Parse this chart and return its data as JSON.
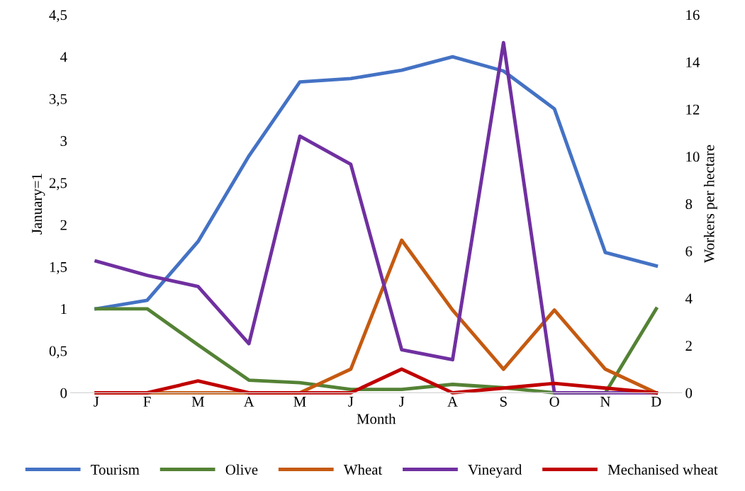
{
  "chart_data": {
    "type": "line",
    "xlabel": "Month",
    "ylabel": "January=1",
    "y2label": "Workers per hectare",
    "categories": [
      "J",
      "F",
      "M",
      "A",
      "M",
      "J",
      "J",
      "A",
      "S",
      "O",
      "N",
      "D"
    ],
    "series": [
      {
        "name": "Tourism",
        "color": "#4472c4",
        "values": [
          1.0,
          1.1,
          1.8,
          2.82,
          3.7,
          3.74,
          3.84,
          4.0,
          3.83,
          3.38,
          1.67,
          1.51
        ]
      },
      {
        "name": "Olive",
        "color": "#548235",
        "values": [
          1.0,
          1.0,
          0.57,
          0.15,
          0.12,
          0.04,
          0.04,
          0.1,
          0.06,
          0,
          0,
          1.0
        ]
      },
      {
        "name": "Wheat",
        "color": "#c55a11",
        "axis": "y2",
        "values": [
          0,
          0,
          0,
          0,
          0,
          1.0,
          6.46,
          3.5,
          1.0,
          3.5,
          1.0,
          0
        ]
      },
      {
        "name": "Vineyard",
        "color": "#7030a0",
        "axis": "y2",
        "values": [
          5.57,
          4.97,
          4.5,
          2.08,
          10.86,
          9.67,
          1.82,
          1.4,
          14.82,
          0,
          0,
          0
        ]
      },
      {
        "name": "Mechanised wheat",
        "color": "#c00000",
        "axis": "y2",
        "values": [
          0,
          0,
          0.5,
          0,
          0,
          0,
          1.0,
          0,
          0.2,
          0.4,
          0.2,
          0
        ]
      }
    ],
    "ylim": [
      0,
      4.5
    ],
    "yticks": [
      0,
      {
        "value": 0.5,
        "label": "0,5"
      },
      1,
      {
        "value": 1.5,
        "label": "1,5"
      },
      2,
      {
        "value": 2.5,
        "label": "2,5"
      },
      3,
      {
        "value": 3.5,
        "label": "3,5"
      },
      4,
      {
        "value": 4.5,
        "label": "4,5"
      }
    ],
    "y2lim": [
      0,
      16
    ],
    "y2ticks": [
      0,
      2,
      4,
      6,
      8,
      10,
      12,
      14,
      16
    ],
    "grid": false,
    "legend": "bottom",
    "marker": "none",
    "line_style": "solid"
  }
}
